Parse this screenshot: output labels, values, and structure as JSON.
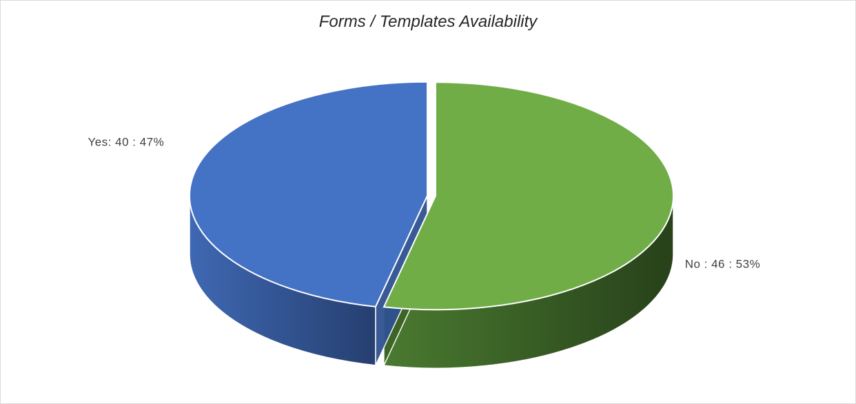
{
  "chart_data": {
    "type": "pie",
    "style": "3d",
    "title": "Forms / Templates Availability",
    "slices": [
      {
        "name": "Yes",
        "value": 40,
        "percent": 47,
        "label": "Yes: 40 : 47%",
        "color": "#4472c4",
        "side_color": "#2f5291"
      },
      {
        "name": "No",
        "value": 46,
        "percent": 53,
        "label": "No : 46 : 53%",
        "color": "#70ad47",
        "side_color": "#3d6426"
      }
    ],
    "legend": "none"
  }
}
